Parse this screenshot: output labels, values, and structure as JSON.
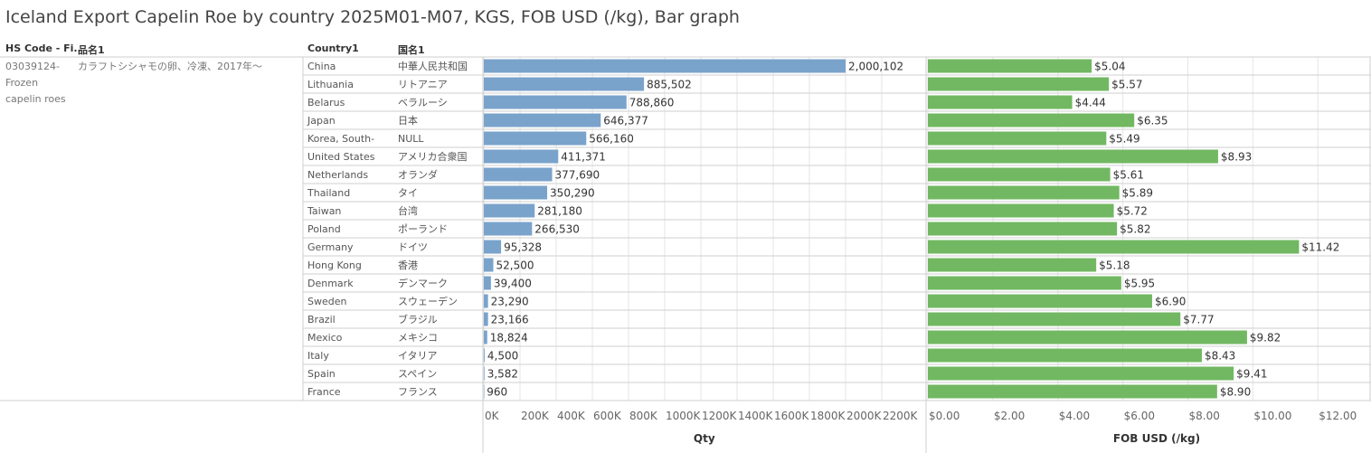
{
  "title": "Iceland Export Capelin Roe by country 2025M01-M07, KGS, FOB USD (/kg), Bar graph",
  "headers": {
    "hs_code": "HS Code - Fi..",
    "item_name": "品名1",
    "country": "Country1",
    "country_jp": "国名1"
  },
  "hs_code_lines": [
    "03039124-",
    "Frozen",
    "capelin roes"
  ],
  "item_name_value": "カラフトシシャモの卵、冷凍、2017年～",
  "colors": {
    "qty_bar": "#7aa3cb",
    "fob_bar": "#72b862",
    "grid": "#e6e6e6",
    "divider": "#cfcfcf"
  },
  "chart_data": {
    "type": "bar",
    "orientation": "horizontal",
    "categories": [
      "China",
      "Lithuania",
      "Belarus",
      "Japan",
      "Korea, South-",
      "United States",
      "Netherlands",
      "Thailand",
      "Taiwan",
      "Poland",
      "Germany",
      "Hong Kong",
      "Denmark",
      "Sweden",
      "Brazil",
      "Mexico",
      "Italy",
      "Spain",
      "France"
    ],
    "categories_jp": [
      "中華人民共和国",
      "リトアニア",
      "ベラルーシ",
      "日本",
      "NULL",
      "アメリカ合衆国",
      "オランダ",
      "タイ",
      "台湾",
      "ポーランド",
      "ドイツ",
      "香港",
      "デンマーク",
      "スウェーデン",
      "ブラジル",
      "メキシコ",
      "イタリア",
      "スペイン",
      "フランス"
    ],
    "series": [
      {
        "name": "Qty",
        "values": [
          2000102,
          885502,
          788860,
          646377,
          566160,
          411371,
          377690,
          350290,
          281180,
          266530,
          95328,
          52500,
          39400,
          23290,
          23166,
          18824,
          4500,
          3582,
          960
        ],
        "labels": [
          "2,000,102",
          "885,502",
          "788,860",
          "646,377",
          "566,160",
          "411,371",
          "377,690",
          "350,290",
          "281,180",
          "266,530",
          "95,328",
          "52,500",
          "39,400",
          "23,290",
          "23,166",
          "18,824",
          "4,500",
          "3,582",
          "960"
        ],
        "xlim": [
          0,
          2300000
        ],
        "ticks": [
          0,
          200000,
          400000,
          600000,
          800000,
          1000000,
          1200000,
          1400000,
          1600000,
          1800000,
          2000000,
          2200000
        ],
        "tick_labels": [
          "0K",
          "200K",
          "400K",
          "600K",
          "800K",
          "1000K",
          "1200K",
          "1400K",
          "1600K",
          "1800K",
          "2000K",
          "2200K"
        ],
        "xlabel": "Qty"
      },
      {
        "name": "FOB USD (/kg)",
        "values": [
          5.04,
          5.57,
          4.44,
          6.35,
          5.49,
          8.93,
          5.61,
          5.89,
          5.72,
          5.82,
          11.42,
          5.18,
          5.95,
          6.9,
          7.77,
          9.82,
          8.43,
          9.41,
          8.9
        ],
        "labels": [
          "$5.04",
          "$5.57",
          "$4.44",
          "$6.35",
          "$5.49",
          "$8.93",
          "$5.61",
          "$5.89",
          "$5.72",
          "$5.82",
          "$11.42",
          "$5.18",
          "$5.95",
          "$6.90",
          "$7.77",
          "$9.82",
          "$8.43",
          "$9.41",
          "$8.90"
        ],
        "xlim": [
          0,
          12.8
        ],
        "ticks": [
          0,
          2,
          4,
          6,
          8,
          10,
          12
        ],
        "tick_labels": [
          "$0.00",
          "$2.00",
          "$4.00",
          "$6.00",
          "$8.00",
          "$10.00",
          "$12.00"
        ],
        "xlabel": "FOB USD (/kg)"
      }
    ],
    "grid": true
  }
}
